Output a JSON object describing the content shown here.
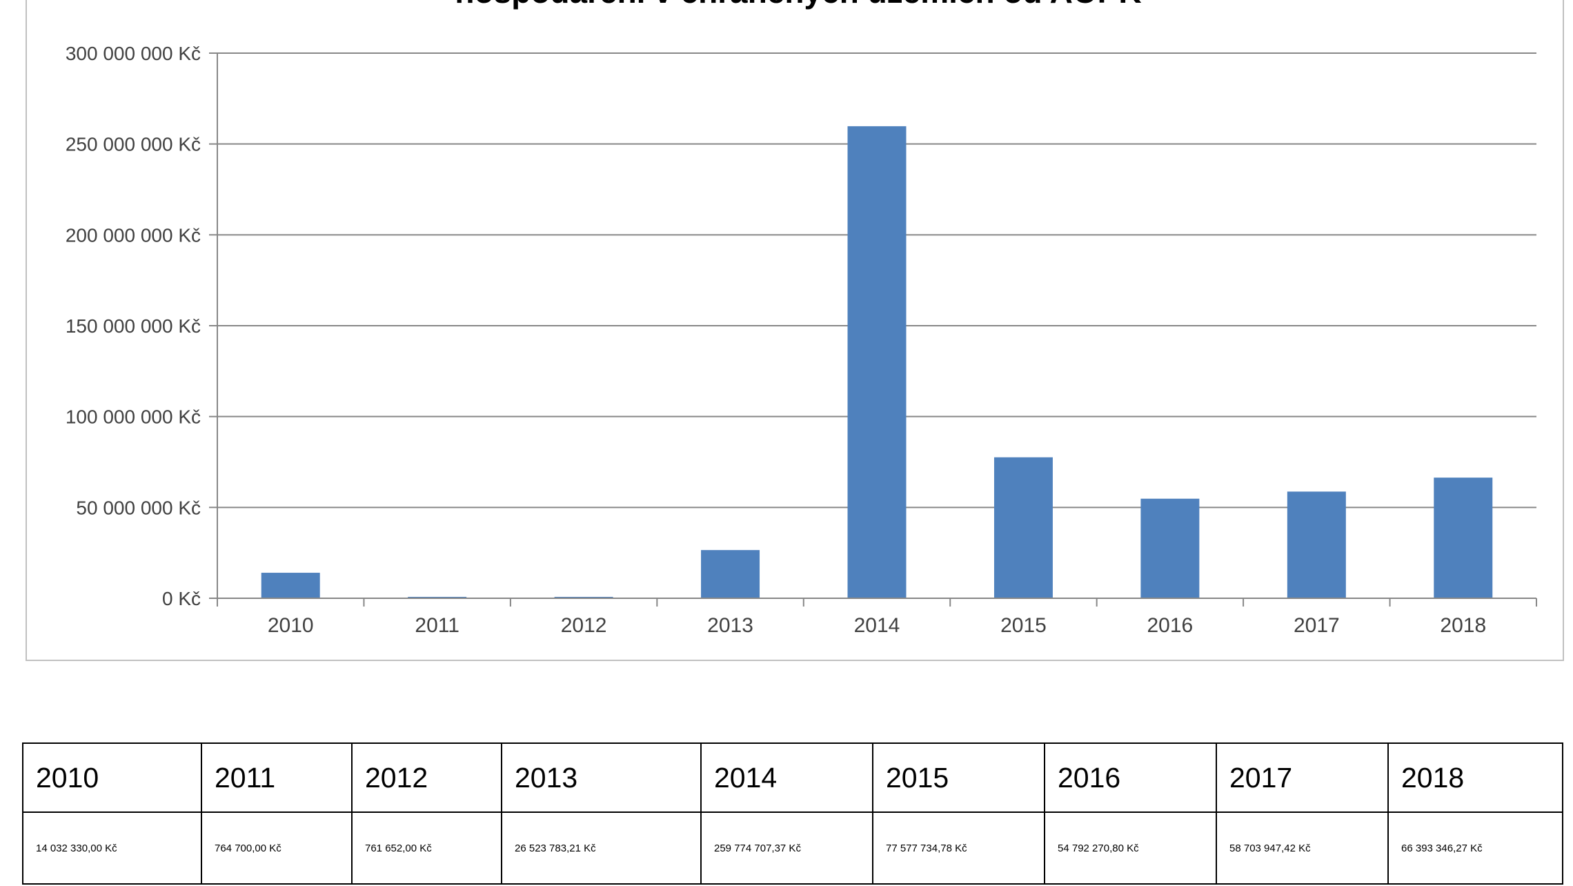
{
  "chart_data": {
    "type": "bar",
    "title": "hospodaření v chráněných územích od AOPK",
    "categories": [
      "2010",
      "2011",
      "2012",
      "2013",
      "2014",
      "2015",
      "2016",
      "2017",
      "2018"
    ],
    "values": [
      14032330.0,
      764700.0,
      761652.0,
      26523783.21,
      259774707.37,
      77577734.78,
      54792270.8,
      58703947.42,
      66393346.27
    ],
    "ylim": [
      0,
      300000000
    ],
    "y_ticks": [
      {
        "value": 0,
        "label": "0 Kč"
      },
      {
        "value": 50000000,
        "label": "50 000 000 Kč"
      },
      {
        "value": 100000000,
        "label": "100 000 000 Kč"
      },
      {
        "value": 150000000,
        "label": "150 000 000 Kč"
      },
      {
        "value": 200000000,
        "label": "200 000 000 Kč"
      },
      {
        "value": 250000000,
        "label": "250 000 000 Kč"
      },
      {
        "value": 300000000,
        "label": "300 000 000 Kč"
      }
    ],
    "grid": true,
    "bar_color": "#4f81bd",
    "xlabel": "",
    "ylabel": ""
  },
  "table": {
    "years": [
      "2010",
      "2011",
      "2012",
      "2013",
      "2014",
      "2015",
      "2016",
      "2017",
      "2018"
    ],
    "values": [
      "14 032 330,00 Kč",
      "764 700,00 Kč",
      "761 652,00 Kč",
      "26 523 783,21 Kč",
      "259 774 707,37 Kč",
      "77 577 734,78 Kč",
      "54 792 270,80 Kč",
      "58 703 947,42 Kč",
      "66 393 346,27 Kč"
    ]
  }
}
